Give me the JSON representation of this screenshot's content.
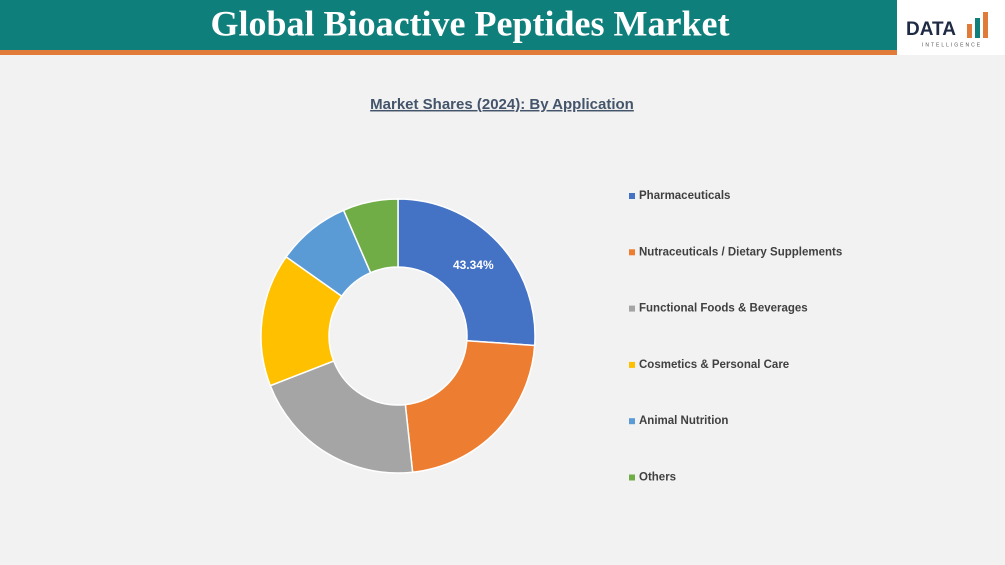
{
  "header": {
    "title": "Global Bioactive Peptides Market",
    "logo": "DATA",
    "logo_sub": "INTELLIGENCE"
  },
  "chart_data": {
    "type": "donut",
    "title": "Market Shares (2024): By Application",
    "categories": [
      "Pharmaceuticals",
      "Nutraceuticals / Dietary Supplements",
      "Functional Foods & Beverages",
      "Cosmetics & Personal Care",
      "Animal Nutrition",
      "Others"
    ],
    "values": [
      26.1,
      22.2,
      20.8,
      15.7,
      8.7,
      6.5
    ],
    "colors": [
      "#4472c4",
      "#ed7d31",
      "#a5a5a5",
      "#ffc000",
      "#5b9bd5",
      "#70ad47"
    ],
    "annotation": "43.34%",
    "legend": "right"
  }
}
